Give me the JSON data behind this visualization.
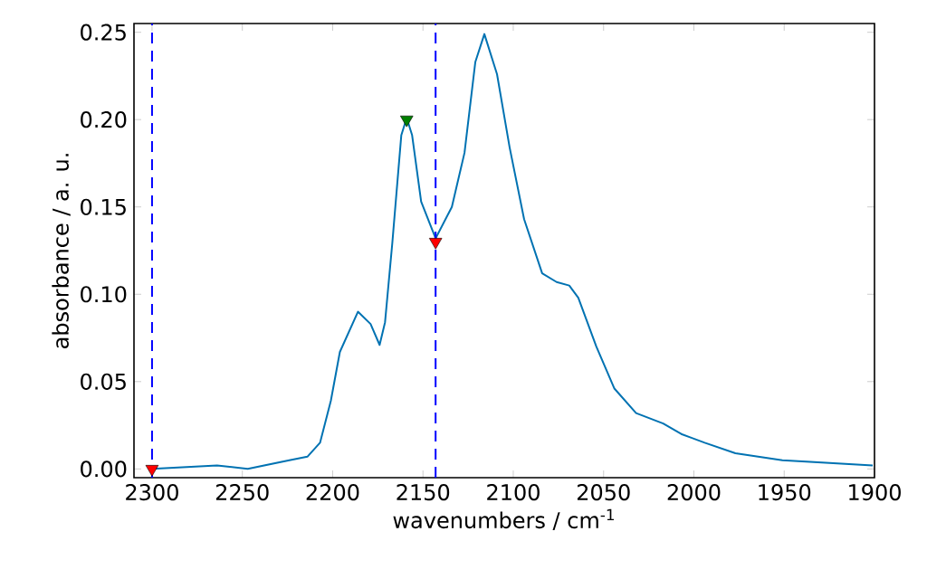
{
  "chart_data": {
    "type": "line",
    "xlabel": "wavenumbers / cm$^{-1}$",
    "ylabel": "absorbance / a. u.",
    "xlim": [
      2310,
      1900
    ],
    "ylim": [
      -0.005,
      0.255
    ],
    "xticks": [
      2300,
      2250,
      2200,
      2150,
      2100,
      2050,
      2000,
      1950,
      1900
    ],
    "yticks": [
      {
        "value": 0,
        "label": "0.00"
      },
      {
        "value": 0.05,
        "label": "0.05"
      },
      {
        "value": 0.1,
        "label": "0.10"
      },
      {
        "value": 0.15,
        "label": "0.15"
      },
      {
        "value": 0.2,
        "label": "0.20"
      },
      {
        "value": 0.25,
        "label": "0.25"
      }
    ],
    "grid": false,
    "ref_lines": [
      {
        "axis": "x",
        "value": 2300,
        "color": "#0000ff",
        "line_style": "dashed"
      },
      {
        "axis": "x",
        "value": 2143,
        "color": "#0000ff",
        "line_style": "dashed"
      }
    ],
    "series": [
      {
        "color": "#0072b2",
        "marker": "none",
        "x": [
          2300,
          2264,
          2247,
          2224,
          2214,
          2207,
          2201,
          2196,
          2186,
          2179,
          2174,
          2171,
          2167,
          2162,
          2159,
          2156,
          2151,
          2143,
          2134,
          2127,
          2121,
          2116,
          2109,
          2102,
          2094,
          2084,
          2076,
          2069,
          2064,
          2054,
          2044,
          2032,
          2017,
          2007,
          1994,
          1977,
          1951,
          1901
        ],
        "values": [
          0.0,
          0.002,
          0.0,
          0.005,
          0.007,
          0.015,
          0.039,
          0.067,
          0.09,
          0.083,
          0.071,
          0.084,
          0.129,
          0.191,
          0.201,
          0.191,
          0.153,
          0.132,
          0.15,
          0.181,
          0.233,
          0.249,
          0.226,
          0.184,
          0.143,
          0.112,
          0.107,
          0.105,
          0.098,
          0.07,
          0.046,
          0.032,
          0.026,
          0.02,
          0.015,
          0.009,
          0.005,
          0.002
        ]
      },
      {
        "type": "scatter",
        "color": "#ff0000",
        "marker": "triangle",
        "x": [
          2300,
          2143
        ],
        "values": [
          0.0,
          0.13
        ]
      },
      {
        "type": "scatter",
        "color": "#008000",
        "marker": "triangle",
        "x": [
          2159
        ],
        "values": [
          0.2
        ]
      }
    ]
  }
}
